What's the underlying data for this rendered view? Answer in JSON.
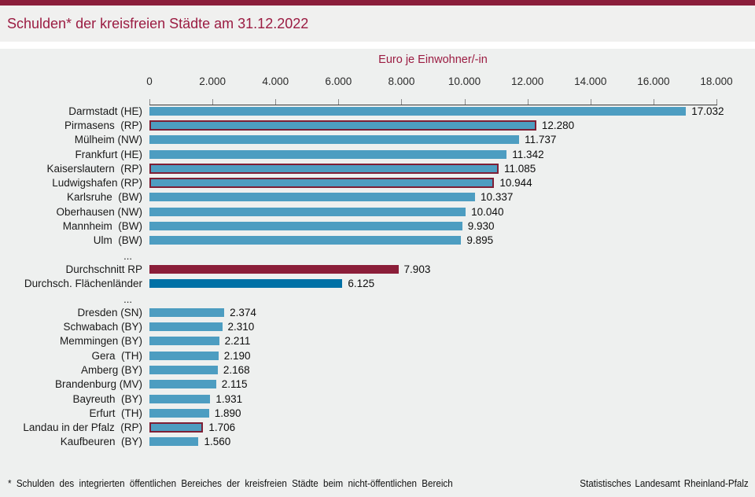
{
  "page": {
    "title": "Schulden* der kreisfreien Städte am 31.12.2022",
    "footnote": "* Schulden des integrierten öffentlichen Bereiches der kreisfreien Städte beim nicht-öffentlichen Bereich",
    "source": "Statistisches Landesamt Rheinland-Pfalz"
  },
  "colors": {
    "brand_maroon_strip": "#8B1E3B",
    "title_text": "#9B1C42",
    "bar_blue": "#4D9DC1",
    "bar_rp_border": "#7E1F35",
    "bar_avg_rp": "#8B1E39",
    "bar_avg_flaechenlaender": "#0071A6",
    "background": "#EEF0EF"
  },
  "chart_data": {
    "type": "bar",
    "orientation": "horizontal",
    "title": "Schulden* der kreisfreien Städte am 31.12.2022",
    "xlabel": "Euro je Einwohner/-in",
    "xlim": [
      0,
      18000
    ],
    "grid": false,
    "axis_position": "top",
    "ticks": [
      {
        "value": 0,
        "label": "0"
      },
      {
        "value": 2000,
        "label": "2.000"
      },
      {
        "value": 4000,
        "label": "4.000"
      },
      {
        "value": 6000,
        "label": "6.000"
      },
      {
        "value": 8000,
        "label": "8.000"
      },
      {
        "value": 10000,
        "label": "10.000"
      },
      {
        "value": 12000,
        "label": "12.000"
      },
      {
        "value": 14000,
        "label": "14.000"
      },
      {
        "value": 16000,
        "label": "16.000"
      },
      {
        "value": 18000,
        "label": "18.000"
      }
    ],
    "ellipsis_symbol": "...",
    "rows": [
      {
        "label": "Darmstadt (HE)",
        "value": 17032,
        "value_label": "17.032",
        "kind": "city"
      },
      {
        "label": "Pirmasens  (RP)",
        "value": 12280,
        "value_label": "12.280",
        "kind": "city-rp"
      },
      {
        "label": "Mülheim (NW)",
        "value": 11737,
        "value_label": "11.737",
        "kind": "city"
      },
      {
        "label": "Frankfurt (HE)",
        "value": 11342,
        "value_label": "11.342",
        "kind": "city"
      },
      {
        "label": "Kaiserslautern  (RP)",
        "value": 11085,
        "value_label": "11.085",
        "kind": "city-rp"
      },
      {
        "label": "Ludwigshafen (RP)",
        "value": 10944,
        "value_label": "10.944",
        "kind": "city-rp"
      },
      {
        "label": "Karlsruhe  (BW)",
        "value": 10337,
        "value_label": "10.337",
        "kind": "city"
      },
      {
        "label": "Oberhausen (NW)",
        "value": 10040,
        "value_label": "10.040",
        "kind": "city"
      },
      {
        "label": "Mannheim  (BW)",
        "value": 9930,
        "value_label": "9.930",
        "kind": "city"
      },
      {
        "label": "Ulm  (BW)",
        "value": 9895,
        "value_label": "9.895",
        "kind": "city"
      },
      {
        "kind": "ellipsis"
      },
      {
        "label": "Durchschnitt RP",
        "value": 7903,
        "value_label": "7.903",
        "kind": "avg-rp"
      },
      {
        "label": "Durchsch. Flächenländer",
        "value": 6125,
        "value_label": "6.125",
        "kind": "avg-flaeche"
      },
      {
        "kind": "ellipsis"
      },
      {
        "label": "Dresden (SN)",
        "value": 2374,
        "value_label": "2.374",
        "kind": "city"
      },
      {
        "label": "Schwabach (BY)",
        "value": 2310,
        "value_label": "2.310",
        "kind": "city"
      },
      {
        "label": "Memmingen (BY)",
        "value": 2211,
        "value_label": "2.211",
        "kind": "city"
      },
      {
        "label": "Gera  (TH)",
        "value": 2190,
        "value_label": "2.190",
        "kind": "city"
      },
      {
        "label": "Amberg (BY)",
        "value": 2168,
        "value_label": "2.168",
        "kind": "city"
      },
      {
        "label": "Brandenburg (MV)",
        "value": 2115,
        "value_label": "2.115",
        "kind": "city"
      },
      {
        "label": "Bayreuth  (BY)",
        "value": 1931,
        "value_label": "1.931",
        "kind": "city"
      },
      {
        "label": "Erfurt  (TH)",
        "value": 1890,
        "value_label": "1.890",
        "kind": "city"
      },
      {
        "label": "Landau in der Pfalz  (RP)",
        "value": 1706,
        "value_label": "1.706",
        "kind": "city-rp"
      },
      {
        "label": "Kaufbeuren  (BY)",
        "value": 1560,
        "value_label": "1.560",
        "kind": "city"
      }
    ]
  }
}
